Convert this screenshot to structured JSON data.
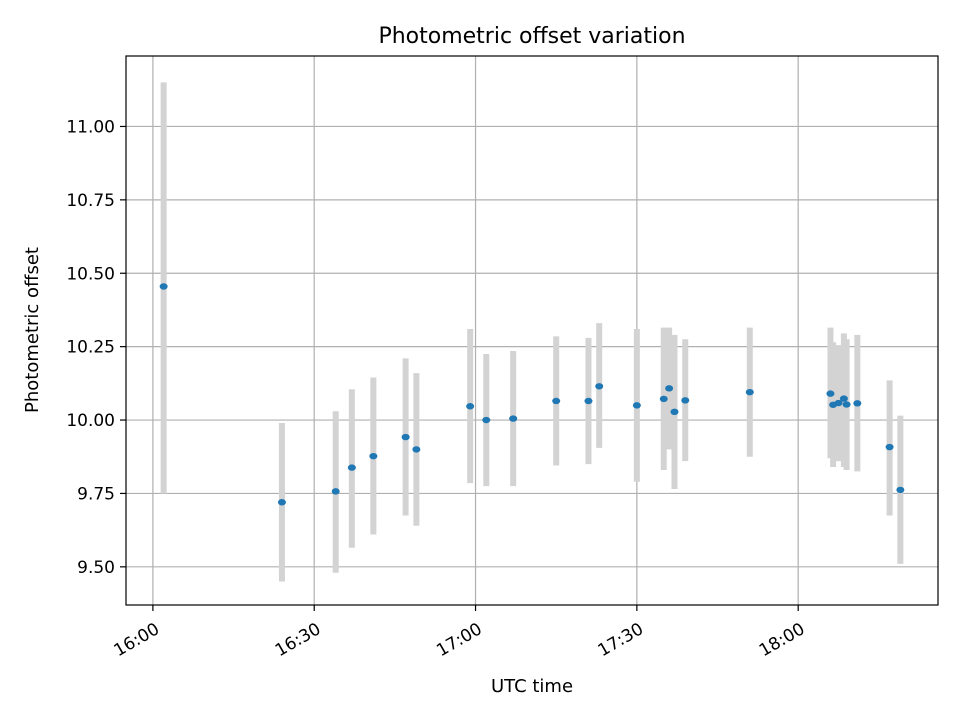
{
  "chart_data": {
    "type": "scatter",
    "title": "Photometric offset variation",
    "xlabel": "UTC time",
    "ylabel": "Photometric offset",
    "xlim": [
      "15:55",
      "18:26"
    ],
    "ylim": [
      9.37,
      11.24
    ],
    "x_ticks": [
      "16:00",
      "16:30",
      "17:00",
      "17:30",
      "18:00"
    ],
    "y_ticks": [
      "9.50",
      "9.75",
      "10.00",
      "10.25",
      "10.50",
      "10.75",
      "11.00"
    ],
    "grid": true,
    "colors": {
      "point": "#1f77b4",
      "error_bar": "#d3d3d3",
      "grid": "#b0b0b0"
    },
    "points": [
      {
        "t": "16:02",
        "y": 10.455,
        "lo": 9.75,
        "hi": 11.15
      },
      {
        "t": "16:24",
        "y": 9.72,
        "lo": 9.45,
        "hi": 9.99
      },
      {
        "t": "16:34",
        "y": 9.757,
        "lo": 9.48,
        "hi": 10.03
      },
      {
        "t": "16:37",
        "y": 9.838,
        "lo": 9.565,
        "hi": 10.105
      },
      {
        "t": "16:41",
        "y": 9.877,
        "lo": 9.61,
        "hi": 10.145
      },
      {
        "t": "16:47",
        "y": 9.942,
        "lo": 9.675,
        "hi": 10.21
      },
      {
        "t": "16:49",
        "y": 9.9,
        "lo": 9.64,
        "hi": 10.16
      },
      {
        "t": "16:59",
        "y": 10.047,
        "lo": 9.785,
        "hi": 10.31
      },
      {
        "t": "17:02",
        "y": 10.0,
        "lo": 9.775,
        "hi": 10.225
      },
      {
        "t": "17:07",
        "y": 10.005,
        "lo": 9.775,
        "hi": 10.235
      },
      {
        "t": "17:15",
        "y": 10.065,
        "lo": 9.845,
        "hi": 10.285
      },
      {
        "t": "17:21",
        "y": 10.065,
        "lo": 9.85,
        "hi": 10.28
      },
      {
        "t": "17:23",
        "y": 10.115,
        "lo": 9.905,
        "hi": 10.33
      },
      {
        "t": "17:30",
        "y": 10.05,
        "lo": 9.79,
        "hi": 10.31
      },
      {
        "t": "17:35",
        "y": 10.072,
        "lo": 9.83,
        "hi": 10.315
      },
      {
        "t": "17:36",
        "y": 10.108,
        "lo": 9.9,
        "hi": 10.315
      },
      {
        "t": "17:37",
        "y": 10.028,
        "lo": 9.765,
        "hi": 10.29
      },
      {
        "t": "17:39",
        "y": 10.067,
        "lo": 9.86,
        "hi": 10.275
      },
      {
        "t": "17:51",
        "y": 10.095,
        "lo": 9.875,
        "hi": 10.315
      },
      {
        "t": "18:06",
        "y": 10.09,
        "lo": 9.87,
        "hi": 10.315
      },
      {
        "t": "18:06:30",
        "y": 10.052,
        "lo": 9.84,
        "hi": 10.265
      },
      {
        "t": "18:07:30",
        "y": 10.058,
        "lo": 9.86,
        "hi": 10.255
      },
      {
        "t": "18:08:30",
        "y": 10.073,
        "lo": 9.84,
        "hi": 10.295
      },
      {
        "t": "18:09",
        "y": 10.053,
        "lo": 9.83,
        "hi": 10.275
      },
      {
        "t": "18:11",
        "y": 10.057,
        "lo": 9.825,
        "hi": 10.29
      },
      {
        "t": "18:17",
        "y": 9.908,
        "lo": 9.675,
        "hi": 10.135
      },
      {
        "t": "18:19",
        "y": 9.762,
        "lo": 9.51,
        "hi": 10.015
      }
    ]
  }
}
